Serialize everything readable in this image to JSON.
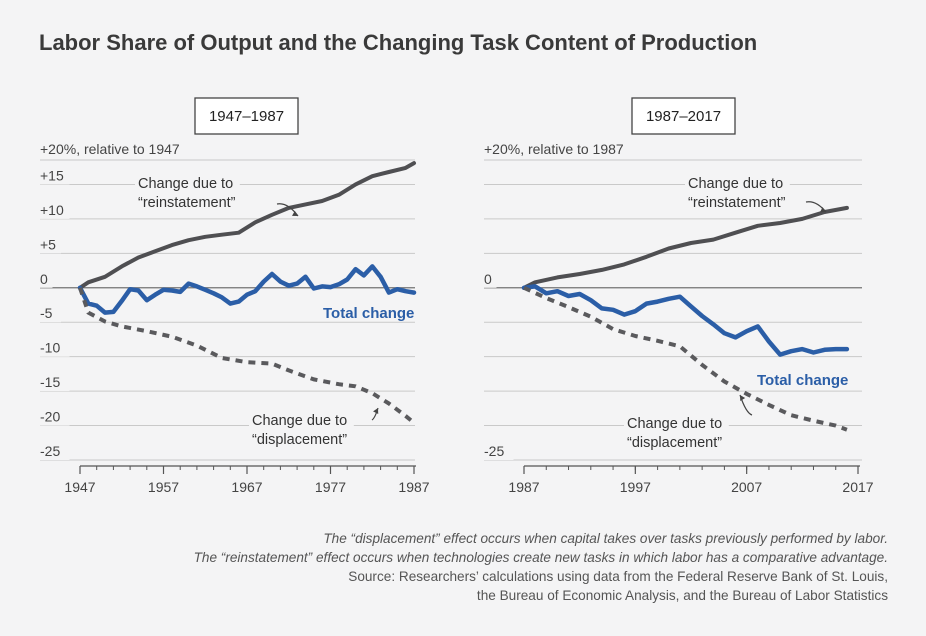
{
  "title": "Labor Share of Output and the Changing Task Content of Production",
  "colors": {
    "reinstatement": "#4f4f52",
    "total": "#2b5ea7",
    "displacement": "#5a5a5d",
    "grid": "#c9c9c9",
    "axis": "#555555"
  },
  "chart_data": [
    {
      "type": "line",
      "panel_label": "1947–1987",
      "ylabel": "+20%, relative to 1947",
      "xlim": [
        1947,
        1987
      ],
      "ylim": [
        -25,
        20
      ],
      "x_ticks": [
        1947,
        1957,
        1967,
        1977,
        1987
      ],
      "y_ticks": [
        {
          "value": 15,
          "label": "+15"
        },
        {
          "value": 10,
          "label": "+10"
        },
        {
          "value": 5,
          "label": "+5"
        },
        {
          "value": 0,
          "label": "0"
        },
        {
          "value": -5,
          "label": "-5"
        },
        {
          "value": -10,
          "label": "-10"
        },
        {
          "value": -15,
          "label": "-15"
        },
        {
          "value": -20,
          "label": "-20"
        },
        {
          "value": -25,
          "label": "-25"
        }
      ],
      "grid": true,
      "annotations": {
        "reinstatement": [
          "Change due to",
          "“reinstatement”"
        ],
        "displacement": [
          "Change due to",
          "“displacement”"
        ],
        "total": "Total change"
      },
      "series": [
        {
          "key": "reinstatement",
          "x": [
            1947,
            1948,
            1950,
            1952,
            1954,
            1956,
            1958,
            1960,
            1962,
            1964,
            1966,
            1968,
            1970,
            1972,
            1974,
            1976,
            1978,
            1980,
            1982,
            1984,
            1986,
            1987
          ],
          "y": [
            0,
            0.8,
            1.6,
            3.1,
            4.4,
            5.3,
            6.2,
            6.9,
            7.4,
            7.7,
            8.0,
            9.5,
            10.6,
            11.6,
            12.1,
            12.6,
            13.5,
            15.0,
            16.2,
            16.8,
            17.4,
            18.1
          ]
        },
        {
          "key": "total",
          "x": [
            1947,
            1948,
            1949,
            1950,
            1951,
            1952,
            1953,
            1954,
            1955,
            1956,
            1957,
            1958,
            1959,
            1960,
            1961,
            1962,
            1963,
            1964,
            1965,
            1966,
            1967,
            1968,
            1969,
            1970,
            1971,
            1972,
            1973,
            1974,
            1975,
            1976,
            1977,
            1978,
            1979,
            1980,
            1981,
            1982,
            1983,
            1984,
            1985,
            1986,
            1987
          ],
          "y": [
            0,
            -2.3,
            -2.6,
            -3.6,
            -3.5,
            -1.9,
            -0.2,
            -0.4,
            -1.8,
            -1.0,
            -0.3,
            -0.4,
            -0.6,
            0.6,
            0.2,
            -0.3,
            -0.8,
            -1.4,
            -2.3,
            -2.0,
            -1.0,
            -0.5,
            0.9,
            2.0,
            0.9,
            0.3,
            0.6,
            1.6,
            -0.1,
            0.2,
            0.1,
            0.5,
            1.2,
            2.7,
            1.8,
            3.1,
            1.6,
            -0.7,
            -0.2,
            -0.5,
            -0.7
          ]
        },
        {
          "key": "displacement",
          "x": [
            1947,
            1948,
            1950,
            1952,
            1955,
            1958,
            1961,
            1964,
            1967,
            1970,
            1972,
            1975,
            1978,
            1980,
            1982,
            1984,
            1986,
            1987
          ],
          "y": [
            0,
            -3.6,
            -4.9,
            -5.6,
            -6.3,
            -7.1,
            -8.4,
            -10.2,
            -10.8,
            -11.0,
            -12.0,
            -13.3,
            -14.0,
            -14.3,
            -15.3,
            -16.8,
            -18.6,
            -19.6
          ]
        }
      ]
    },
    {
      "type": "line",
      "panel_label": "1987–2017",
      "ylabel": "+20%, relative to 1987",
      "xlim": [
        1987,
        2017
      ],
      "ylim": [
        -25,
        20
      ],
      "x_ticks": [
        1987,
        1997,
        2007,
        2017
      ],
      "y_ticks": [
        {
          "value": 0,
          "label": "0"
        },
        {
          "value": -25,
          "label": "-25"
        }
      ],
      "grid": true,
      "annotations": {
        "reinstatement": [
          "Change due to",
          "“reinstatement”"
        ],
        "displacement": [
          "Change due to",
          "“displacement”"
        ],
        "total": "Total change"
      },
      "series": [
        {
          "key": "reinstatement",
          "x": [
            1987,
            1988,
            1990,
            1992,
            1994,
            1996,
            1998,
            2000,
            2002,
            2004,
            2006,
            2008,
            2010,
            2012,
            2014,
            2016
          ],
          "y": [
            0,
            0.8,
            1.5,
            2.0,
            2.6,
            3.4,
            4.5,
            5.7,
            6.5,
            7.0,
            8.0,
            9.0,
            9.4,
            10.0,
            11.0,
            11.6
          ]
        },
        {
          "key": "total",
          "x": [
            1987,
            1988,
            1989,
            1990,
            1991,
            1992,
            1993,
            1994,
            1995,
            1996,
            1997,
            1998,
            1999,
            2000,
            2001,
            2002,
            2003,
            2004,
            2005,
            2006,
            2007,
            2008,
            2009,
            2010,
            2011,
            2012,
            2013,
            2014,
            2015,
            2016
          ],
          "y": [
            0,
            0.2,
            -0.8,
            -0.5,
            -1.2,
            -0.9,
            -1.8,
            -3.0,
            -3.2,
            -3.9,
            -3.4,
            -2.3,
            -2.0,
            -1.6,
            -1.3,
            -2.7,
            -4.1,
            -5.3,
            -6.6,
            -7.2,
            -6.3,
            -5.6,
            -7.8,
            -9.7,
            -9.2,
            -8.9,
            -9.4,
            -9.0,
            -8.9,
            -8.9
          ]
        },
        {
          "key": "displacement",
          "x": [
            1987,
            1989,
            1991,
            1993,
            1995,
            1997,
            1999,
            2001,
            2003,
            2005,
            2007,
            2009,
            2011,
            2013,
            2015,
            2016
          ],
          "y": [
            0,
            -1.5,
            -2.8,
            -4.2,
            -6.0,
            -7.0,
            -7.7,
            -8.5,
            -11.2,
            -13.6,
            -15.4,
            -17.0,
            -18.5,
            -19.3,
            -20.0,
            -20.6
          ]
        }
      ]
    }
  ],
  "notes": {
    "line1": "The “displacement” effect occurs when capital takes over tasks previously performed by labor.",
    "line2": "The “reinstatement” effect occurs when technologies create new tasks in which labor has a comparative advantage.",
    "line3": "Source: Researchers’ calculations using data from the Federal Reserve Bank of St. Louis,",
    "line4": "the Bureau of Economic Analysis, and the Bureau of Labor Statistics"
  }
}
